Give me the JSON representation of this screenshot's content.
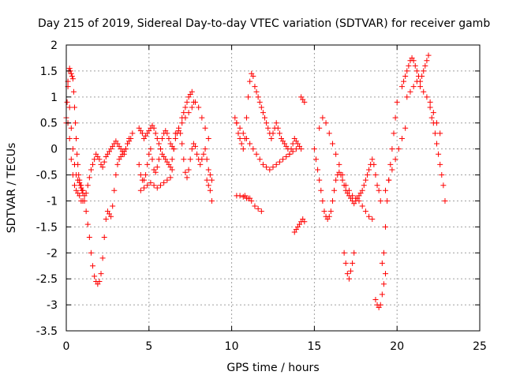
{
  "chart_data": {
    "type": "scatter",
    "title": "Day 215 of 2019, Sidereal Day-to-day VTEC variation (SDTVAR) for receiver gamb",
    "xlabel": "GPS time / hours",
    "ylabel": "SDTVAR / TECUs",
    "xlim": [
      0,
      25
    ],
    "ylim": [
      -3.5,
      2
    ],
    "xticks": [
      0,
      5,
      10,
      15,
      20,
      25
    ],
    "yticks": [
      -3.5,
      -3,
      -2.5,
      -2,
      -1.5,
      -1,
      -0.5,
      0,
      0.5,
      1,
      1.5,
      2
    ],
    "grid": true,
    "marker": "+",
    "color": "#ff0000",
    "series": [
      {
        "name": "SDTVAR",
        "x": [
          0.0,
          0.05,
          0.1,
          0.15,
          0.2,
          0.25,
          0.3,
          0.35,
          0.4,
          0.45,
          0.5,
          0.55,
          0.6,
          0.65,
          0.7,
          0.75,
          0.8,
          0.85,
          0.9,
          0.95,
          1.0,
          1.1,
          1.2,
          1.3,
          1.4,
          1.5,
          1.6,
          1.7,
          1.8,
          1.9,
          2.0,
          2.1,
          2.2,
          2.3,
          2.4,
          2.5,
          2.6,
          2.7,
          2.8,
          2.9,
          3.0,
          3.1,
          3.2,
          3.3,
          3.4,
          3.5,
          3.6,
          3.7,
          3.8,
          3.9,
          4.0,
          0.1,
          0.2,
          0.3,
          0.4,
          0.5,
          0.6,
          0.7,
          0.8,
          0.9,
          1.0,
          1.1,
          1.2,
          1.3,
          1.4,
          1.5,
          1.6,
          1.7,
          1.8,
          1.9,
          2.0,
          2.1,
          2.2,
          2.3,
          2.4,
          2.5,
          2.6,
          2.7,
          2.8,
          2.9,
          3.0,
          3.1,
          3.2,
          3.3,
          3.4,
          3.5,
          3.6,
          3.7,
          3.8,
          0.0,
          0.1,
          0.2,
          0.3,
          0.4,
          0.5,
          0.6,
          0.7,
          0.8,
          0.9,
          1.0,
          4.4,
          4.5,
          4.6,
          4.7,
          4.8,
          4.9,
          5.0,
          5.1,
          5.2,
          5.3,
          5.4,
          5.5,
          5.6,
          5.7,
          5.8,
          5.9,
          6.0,
          6.1,
          6.2,
          6.3,
          6.4,
          6.5,
          4.4,
          4.5,
          4.6,
          4.7,
          4.8,
          4.9,
          5.0,
          5.1,
          5.2,
          5.3,
          5.4,
          5.5,
          5.6,
          5.7,
          5.8,
          5.9,
          6.0,
          6.1,
          6.2,
          6.3,
          6.4,
          4.5,
          4.7,
          4.9,
          5.1,
          5.3,
          5.5,
          5.7,
          5.9,
          6.1,
          6.3,
          6.4,
          6.5,
          6.6,
          6.7,
          6.8,
          6.9,
          7.0,
          7.1,
          7.2,
          7.3,
          7.4,
          7.5,
          7.6,
          7.7,
          7.8,
          7.9,
          8.0,
          8.1,
          8.2,
          8.3,
          8.4,
          8.5,
          8.6,
          8.7,
          8.8,
          6.6,
          6.8,
          7.0,
          7.2,
          7.4,
          7.6,
          7.8,
          8.0,
          8.2,
          8.4,
          8.6,
          7.0,
          7.1,
          7.2,
          7.3,
          7.4,
          7.5,
          7.6,
          7.7,
          8.5,
          8.6,
          8.7,
          8.8,
          10.2,
          10.3,
          10.4,
          10.5,
          10.6,
          10.7,
          10.8,
          10.9,
          11.0,
          11.1,
          11.2,
          11.3,
          11.4,
          11.5,
          11.6,
          11.7,
          11.8,
          11.9,
          12.0,
          12.1,
          12.2,
          12.3,
          12.4,
          12.5,
          12.6,
          12.7,
          12.8,
          12.9,
          13.0,
          13.1,
          13.2,
          13.3,
          13.4,
          13.5,
          13.6,
          13.7,
          13.8,
          13.9,
          14.0,
          14.1,
          14.2,
          10.3,
          10.5,
          10.7,
          10.9,
          11.1,
          11.3,
          11.5,
          11.7,
          11.9,
          12.1,
          12.3,
          12.5,
          12.7,
          12.9,
          13.1,
          13.3,
          13.5,
          13.7,
          13.9,
          10.8,
          11.0,
          11.2,
          11.4,
          11.6,
          11.8,
          10.3,
          10.5,
          10.7,
          10.9,
          11.1,
          13.8,
          13.9,
          14.0,
          14.1,
          14.2,
          14.3,
          14.4,
          14.2,
          14.3,
          14.4,
          15.0,
          15.1,
          15.2,
          15.3,
          15.4,
          15.5,
          15.6,
          15.7,
          15.8,
          15.9,
          16.0,
          16.1,
          16.2,
          16.3,
          16.4,
          16.5,
          16.6,
          16.7,
          16.8,
          16.9,
          17.0,
          17.1,
          17.2,
          17.3,
          17.4,
          17.5,
          17.6,
          17.7,
          17.8,
          17.9,
          18.0,
          18.1,
          18.2,
          18.3,
          18.4,
          18.5,
          18.6,
          18.7,
          18.8,
          18.9,
          19.0,
          15.3,
          15.5,
          15.7,
          15.9,
          16.1,
          16.3,
          16.5,
          16.7,
          16.9,
          17.1,
          17.3,
          17.5,
          17.7,
          17.9,
          18.1,
          18.3,
          18.5,
          16.8,
          16.9,
          17.0,
          17.1,
          17.2,
          17.3,
          17.4,
          18.7,
          18.8,
          18.9,
          19.0,
          19.1,
          19.2,
          19.3,
          19.1,
          19.2,
          19.3,
          19.4,
          19.5,
          19.6,
          19.7,
          19.8,
          19.9,
          20.0,
          19.3,
          19.5,
          19.7,
          19.9,
          20.1,
          20.3,
          20.5,
          20.3,
          20.4,
          20.5,
          20.6,
          20.7,
          20.8,
          20.9,
          21.0,
          21.1,
          21.2,
          21.3,
          21.4,
          21.5,
          21.6,
          21.7,
          21.8,
          21.9,
          22.0,
          22.1,
          22.2,
          22.3,
          22.4,
          22.5,
          22.6,
          22.7,
          22.8,
          22.9,
          20.6,
          20.8,
          21.0,
          21.2,
          21.4,
          21.6,
          21.8,
          22.0,
          22.2,
          22.4,
          22.6
        ],
        "y": [
          0.5,
          0.9,
          1.3,
          1.5,
          1.55,
          1.5,
          1.45,
          1.4,
          1.35,
          1.1,
          0.8,
          0.5,
          0.2,
          -0.1,
          -0.3,
          -0.5,
          -0.6,
          -0.7,
          -0.75,
          -0.8,
          -0.85,
          -0.9,
          -0.85,
          -0.7,
          -0.55,
          -0.4,
          -0.3,
          -0.2,
          -0.1,
          -0.15,
          -0.2,
          -0.3,
          -0.35,
          -0.25,
          -0.15,
          -0.1,
          -0.05,
          0.0,
          0.05,
          0.1,
          0.15,
          0.1,
          0.05,
          0.0,
          -0.05,
          -0.1,
          0.0,
          0.1,
          0.15,
          0.2,
          0.3,
          1.2,
          0.8,
          0.4,
          0.0,
          -0.3,
          -0.5,
          -0.6,
          -0.65,
          -0.7,
          -0.8,
          -1.0,
          -1.2,
          -1.45,
          -1.7,
          -2.0,
          -2.25,
          -2.45,
          -2.55,
          -2.6,
          -2.55,
          -2.4,
          -2.1,
          -1.7,
          -1.35,
          -1.2,
          -1.25,
          -1.3,
          -1.1,
          -0.8,
          -0.5,
          -0.3,
          -0.2,
          -0.15,
          -0.1,
          -0.05,
          0.0,
          0.1,
          0.2,
          0.6,
          0.5,
          0.2,
          -0.2,
          -0.5,
          -0.7,
          -0.8,
          -0.85,
          -0.9,
          -1.0,
          -1.0,
          -0.3,
          -0.5,
          -0.6,
          -0.6,
          -0.5,
          -0.3,
          -0.1,
          0.0,
          -0.2,
          -0.4,
          -0.45,
          -0.35,
          -0.2,
          0.0,
          0.2,
          0.3,
          0.35,
          0.3,
          0.2,
          0.1,
          0.05,
          0.0,
          0.4,
          0.35,
          0.3,
          0.2,
          0.25,
          0.3,
          0.35,
          0.4,
          0.45,
          0.4,
          0.3,
          0.2,
          0.1,
          0.0,
          -0.1,
          -0.15,
          -0.2,
          -0.25,
          -0.3,
          -0.35,
          -0.4,
          -0.8,
          -0.75,
          -0.7,
          -0.65,
          -0.7,
          -0.75,
          -0.7,
          -0.65,
          -0.6,
          -0.55,
          -0.2,
          0.0,
          0.2,
          0.3,
          0.35,
          0.3,
          0.1,
          -0.2,
          -0.45,
          -0.55,
          -0.4,
          -0.2,
          0.0,
          0.1,
          0.05,
          -0.1,
          -0.2,
          -0.3,
          -0.2,
          -0.1,
          0.0,
          -0.2,
          -0.4,
          -0.5,
          -0.6,
          0.3,
          0.4,
          0.5,
          0.6,
          0.7,
          0.8,
          0.9,
          0.8,
          0.6,
          0.4,
          0.2,
          0.6,
          0.7,
          0.8,
          0.9,
          1.0,
          1.05,
          1.1,
          0.9,
          -0.6,
          -0.7,
          -0.8,
          -1.0,
          0.6,
          0.5,
          0.3,
          0.2,
          0.1,
          0.0,
          0.2,
          0.6,
          1.0,
          1.3,
          1.45,
          1.4,
          1.2,
          1.1,
          1.0,
          0.9,
          0.8,
          0.7,
          0.6,
          0.5,
          0.4,
          0.3,
          0.2,
          0.3,
          0.4,
          0.5,
          0.4,
          0.3,
          0.2,
          0.15,
          0.1,
          0.05,
          0.0,
          -0.1,
          0.0,
          0.1,
          0.2,
          0.15,
          0.1,
          0.05,
          0.0,
          0.5,
          0.4,
          0.3,
          0.2,
          0.1,
          0.0,
          -0.1,
          -0.2,
          -0.3,
          -0.35,
          -0.4,
          -0.35,
          -0.3,
          -0.25,
          -0.2,
          -0.15,
          -0.1,
          -0.05,
          0.0,
          -0.9,
          -0.95,
          -1.0,
          -1.1,
          -1.15,
          -1.2,
          -0.9,
          -0.9,
          -0.92,
          -0.95,
          -0.95,
          -1.6,
          -1.55,
          -1.5,
          -1.45,
          -1.4,
          -1.35,
          -1.4,
          1.0,
          0.95,
          0.9,
          0.0,
          -0.2,
          -0.4,
          -0.6,
          -0.8,
          -1.0,
          -1.2,
          -1.3,
          -1.35,
          -1.3,
          -1.2,
          -1.0,
          -0.8,
          -0.6,
          -0.5,
          -0.45,
          -0.5,
          -0.6,
          -0.7,
          -0.8,
          -0.85,
          -0.9,
          -0.95,
          -1.0,
          -1.05,
          -1.0,
          -0.95,
          -0.9,
          -0.85,
          -0.8,
          -0.7,
          -0.6,
          -0.5,
          -0.4,
          -0.3,
          -0.2,
          -0.3,
          -0.5,
          -0.7,
          -0.8,
          -1.0,
          0.4,
          0.6,
          0.5,
          0.3,
          0.1,
          -0.1,
          -0.3,
          -0.5,
          -0.7,
          -0.8,
          -0.9,
          -0.95,
          -1.0,
          -1.1,
          -1.2,
          -1.3,
          -1.35,
          -2.0,
          -2.2,
          -2.4,
          -2.5,
          -2.35,
          -2.2,
          -2.0,
          -2.9,
          -3.0,
          -3.05,
          -3.0,
          -2.8,
          -2.6,
          -2.4,
          -2.2,
          -2.0,
          -1.5,
          -1.0,
          -0.6,
          -0.3,
          0.0,
          0.3,
          0.6,
          0.9,
          -0.8,
          -0.6,
          -0.4,
          -0.2,
          0.0,
          0.2,
          0.4,
          1.2,
          1.3,
          1.4,
          1.5,
          1.6,
          1.7,
          1.75,
          1.7,
          1.6,
          1.5,
          1.4,
          1.3,
          1.4,
          1.5,
          1.6,
          1.7,
          1.8,
          0.8,
          0.6,
          0.5,
          0.3,
          0.1,
          -0.1,
          -0.3,
          -0.5,
          -0.7,
          -1.0,
          1.0,
          1.1,
          1.2,
          1.3,
          1.2,
          1.1,
          1.0,
          0.9,
          0.7,
          0.5,
          0.3
        ]
      }
    ]
  }
}
